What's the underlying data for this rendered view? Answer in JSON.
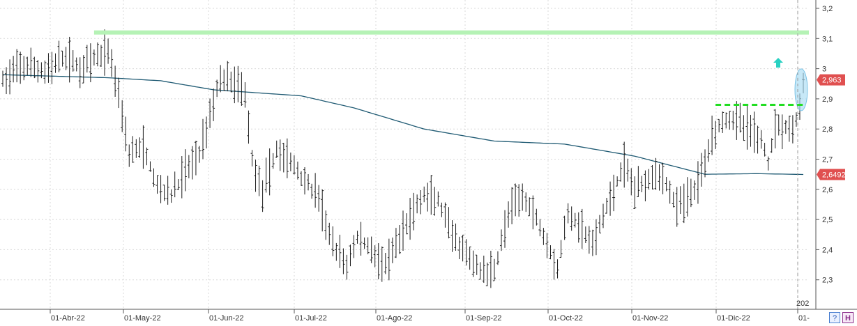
{
  "chart_data": {
    "type": "bar",
    "subtype": "ohlc",
    "title": "",
    "xlabel": "",
    "ylabel": "",
    "ylim": [
      2.22,
      3.22
    ],
    "yticks": [
      "3,2",
      "3,1",
      "3",
      "2,9",
      "2,8",
      "2,7",
      "2,6",
      "2,5",
      "2,4",
      "2,3"
    ],
    "ytick_values": [
      3.2,
      3.1,
      3.0,
      2.9,
      2.8,
      2.7,
      2.6,
      2.5,
      2.4,
      2.3
    ],
    "xticks": [
      "01-Abr-22",
      "01-May-22",
      "01-Jun-22",
      "01-Jul-22",
      "01-Ago-22",
      "01-Sep-22",
      "01-Oct-22",
      "01-Nov-22",
      "01-Dic-22",
      "01-"
    ],
    "year_label": "202",
    "last_price_label": "2,963",
    "last_price": 2.963,
    "moving_average_label": "2,6492",
    "moving_average_last": 2.6492,
    "moving_average_anchors": [
      [
        0,
        2.98
      ],
      [
        30,
        2.97
      ],
      [
        45,
        2.96
      ],
      [
        60,
        2.93
      ],
      [
        85,
        2.91
      ],
      [
        100,
        2.87
      ],
      [
        120,
        2.8
      ],
      [
        140,
        2.76
      ],
      [
        160,
        2.75
      ],
      [
        180,
        2.71
      ],
      [
        190,
        2.68
      ],
      [
        200,
        2.65
      ],
      [
        215,
        2.652
      ],
      [
        228,
        2.6492
      ]
    ],
    "price_anchors": [
      [
        0,
        2.96
      ],
      [
        6,
        3.01
      ],
      [
        12,
        2.99
      ],
      [
        18,
        3.04
      ],
      [
        22,
        3.0
      ],
      [
        26,
        3.03
      ],
      [
        30,
        3.06
      ],
      [
        33,
        2.92
      ],
      [
        36,
        2.72
      ],
      [
        40,
        2.74
      ],
      [
        44,
        2.61
      ],
      [
        48,
        2.58
      ],
      [
        52,
        2.66
      ],
      [
        56,
        2.72
      ],
      [
        59,
        2.85
      ],
      [
        62,
        2.97
      ],
      [
        66,
        2.95
      ],
      [
        69,
        2.92
      ],
      [
        71,
        2.7
      ],
      [
        74,
        2.59
      ],
      [
        78,
        2.73
      ],
      [
        82,
        2.69
      ],
      [
        86,
        2.63
      ],
      [
        90,
        2.57
      ],
      [
        94,
        2.41
      ],
      [
        98,
        2.35
      ],
      [
        101,
        2.44
      ],
      [
        105,
        2.4
      ],
      [
        109,
        2.34
      ],
      [
        112,
        2.41
      ],
      [
        116,
        2.51
      ],
      [
        120,
        2.58
      ],
      [
        124,
        2.56
      ],
      [
        128,
        2.44
      ],
      [
        132,
        2.38
      ],
      [
        136,
        2.33
      ],
      [
        140,
        2.33
      ],
      [
        144,
        2.52
      ],
      [
        148,
        2.58
      ],
      [
        151,
        2.53
      ],
      [
        154,
        2.45
      ],
      [
        158,
        2.34
      ],
      [
        161,
        2.52
      ],
      [
        165,
        2.47
      ],
      [
        168,
        2.41
      ],
      [
        171,
        2.51
      ],
      [
        174,
        2.6
      ],
      [
        177,
        2.68
      ],
      [
        180,
        2.6
      ],
      [
        183,
        2.63
      ],
      [
        186,
        2.66
      ],
      [
        189,
        2.62
      ],
      [
        192,
        2.54
      ],
      [
        195,
        2.57
      ],
      [
        198,
        2.62
      ],
      [
        202,
        2.78
      ],
      [
        205,
        2.83
      ],
      [
        208,
        2.84
      ],
      [
        211,
        2.81
      ],
      [
        214,
        2.79
      ],
      [
        216,
        2.76
      ],
      [
        218,
        2.69
      ],
      [
        220,
        2.81
      ],
      [
        223,
        2.81
      ],
      [
        225,
        2.8
      ],
      [
        227,
        2.86
      ],
      [
        228,
        2.95
      ]
    ],
    "resistance_level": 3.12,
    "resistance_start_index": 26,
    "breakout_level": 2.88,
    "breakout_start_index": 203,
    "bar_count": 229,
    "colors": {
      "bars": "#1a1a1a",
      "moving_average": "#1f5a73",
      "resistance": "#b5f2b5",
      "breakout": "#22dd22",
      "arrow": "#2ad1c2",
      "highlight": "#a9dcf2",
      "price_label_bg": "#e05050",
      "grid": "#d8d8d8"
    },
    "grid": true
  }
}
